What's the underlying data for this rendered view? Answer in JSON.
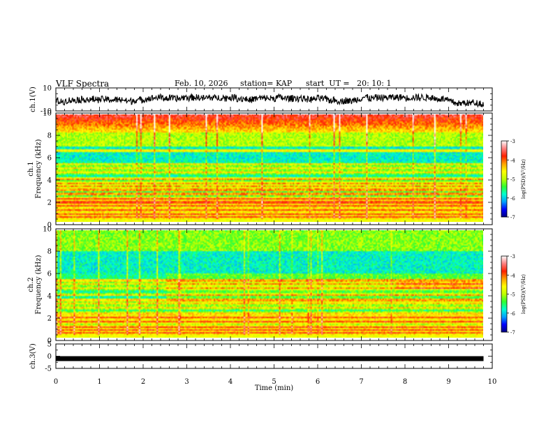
{
  "header": {
    "title": "VLF Spectra",
    "date": "Feb. 10, 2026",
    "station": "station= KAP",
    "start_time": "start  UT =   20: 10: 1"
  },
  "colors": {
    "colormap": [
      "#000080",
      "#0000ff",
      "#00a0ff",
      "#00ffd0",
      "#30ff30",
      "#c0ff00",
      "#ffff00",
      "#ffa000",
      "#ff2000",
      "#ff8080",
      "#ffffff"
    ],
    "waveform": "#000000",
    "ch3_bar": "#000000"
  },
  "chart_data": [
    {
      "type": "line",
      "id": "ch1-waveform",
      "title": "",
      "ylabel": "ch.1(V)",
      "ylim": [
        -10,
        10
      ],
      "y_ticks": [
        "10",
        "-10"
      ],
      "xlim": [
        0,
        10
      ],
      "note": "dense noisy waveform, mostly between about 3 V and -8 V"
    },
    {
      "type": "heatmap",
      "id": "ch1-spectrogram",
      "ylabel": "ch.1",
      "ylabel2": "Frequency (kHz)",
      "ylim": [
        0,
        10
      ],
      "y_ticks": [
        "0",
        "2",
        "4",
        "6",
        "8",
        "10"
      ],
      "xlim": [
        0,
        9.8
      ],
      "colorbar": {
        "label": "log(PSD)(V²/Hz)",
        "range": [
          -7,
          -3
        ],
        "ticks": [
          "-3",
          "-4",
          "-5",
          "-6",
          "-7"
        ]
      },
      "lines_khz": [
        0.15,
        0.45,
        0.75,
        1.1,
        1.5,
        1.8,
        2.15,
        2.6,
        3.0,
        3.3,
        3.6,
        4.0,
        4.6,
        5.0,
        5.35,
        6.6
      ]
    },
    {
      "type": "heatmap",
      "id": "ch2-spectrogram",
      "ylabel": "ch.2",
      "ylabel2": "Frequency (kHz)",
      "ylim": [
        0,
        10
      ],
      "y_ticks": [
        "0",
        "2",
        "4",
        "6",
        "8",
        "10"
      ],
      "xlim": [
        0,
        9.8
      ],
      "colorbar": {
        "label": "log(PSD)(V²/Hz)",
        "range": [
          -7,
          -3
        ],
        "ticks": [
          "-3",
          "-4",
          "-5",
          "-6",
          "-7"
        ]
      },
      "lines_khz": [
        0.15,
        0.45,
        0.75,
        1.0,
        1.5,
        1.9,
        2.3,
        2.8,
        3.2,
        3.5,
        4.0,
        4.6,
        5.0,
        5.3
      ]
    },
    {
      "type": "line",
      "id": "ch3-level",
      "ylabel": "ch.3(V)",
      "ylim": [
        -5,
        5
      ],
      "y_ticks": [
        "5",
        "0",
        "-5"
      ],
      "x": [
        0,
        9.8
      ],
      "y": [
        -1.0,
        -1.0
      ]
    },
    {
      "type": "axis",
      "id": "time-axis",
      "xlabel": "Time  (min)",
      "xlim": [
        0,
        10
      ],
      "x_ticks": [
        "0",
        "1",
        "2",
        "3",
        "4",
        "5",
        "6",
        "7",
        "8",
        "9",
        "10"
      ]
    }
  ]
}
